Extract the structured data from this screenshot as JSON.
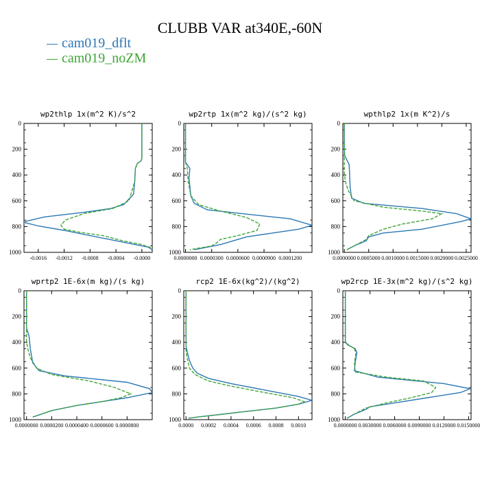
{
  "page": {
    "title": "CLUBB VAR at340E,-60N"
  },
  "legend": [
    {
      "name": "cam019_dflt",
      "color": "#2a77b4"
    },
    {
      "name": "cam019_noZM",
      "color": "#3fa535"
    }
  ],
  "chart_data": [
    {
      "type": "line",
      "title": "wp2thlp  1x(m^2 K)/s^2",
      "ylim": [
        1000,
        0
      ],
      "yticks": [
        "0",
        "200",
        "400",
        "600",
        "800",
        "1000"
      ],
      "xlim": [
        -0.00182,
        0.00016
      ],
      "xtick_values": [
        -0.0016,
        -0.0012,
        -0.0008,
        -0.0004,
        0.0
      ],
      "xtick_labels": [
        "-0.0016",
        "-0.0012",
        "-0.0008",
        "-0.0004",
        "-0.0000"
      ],
      "series": [
        {
          "name": "cam019_dflt",
          "x": [
            0,
            0,
            -1e-05,
            -7e-05,
            -0.0001,
            -0.00011,
            -0.00013,
            -0.00028,
            -0.00048,
            -0.0009,
            -0.0015,
            -0.0018,
            -0.0018,
            -0.0016,
            -0.0012,
            -0.0008,
            -0.0004,
            -0.0001,
            0.0001,
            0.00016
          ],
          "y": [
            0,
            270,
            290,
            310,
            350,
            450,
            550,
            630,
            660,
            690,
            725,
            760,
            770,
            795,
            830,
            870,
            910,
            940,
            960,
            980
          ]
        },
        {
          "name": "cam019_noZM",
          "x": [
            0,
            0,
            -1e-05,
            -7e-05,
            -0.0001,
            -0.00011,
            -0.0002,
            -0.00045,
            -0.0009,
            -0.00118,
            -0.00125,
            -0.0012,
            -0.00095,
            -0.0006,
            -0.0003,
            0.0,
            0.00012,
            0.00016
          ],
          "y": [
            0,
            270,
            290,
            310,
            350,
            450,
            600,
            660,
            700,
            750,
            790,
            820,
            845,
            870,
            910,
            940,
            960,
            970
          ]
        }
      ]
    },
    {
      "type": "line",
      "title": "wp2rtp  1x(m^2 kg)/(s^2 kg)",
      "ylim": [
        1000,
        0
      ],
      "yticks": [
        "0",
        "200",
        "400",
        "600",
        "800",
        "1000"
      ],
      "xlim": [
        -2e-06,
        0.000145
      ],
      "xtick_values": [
        0.0,
        3e-05,
        6e-05,
        9e-05,
        0.00012
      ],
      "xtick_labels": [
        "0.0000000",
        "0.0000300",
        "0.0000600",
        "0.0000900",
        "0.0001200"
      ],
      "series": [
        {
          "name": "cam019_dflt",
          "x": [
            0,
            0,
            2e-06,
            5e-06,
            4e-06,
            6e-06,
            1e-05,
            2.5e-05,
            6.5e-05,
            0.00012,
            0.000145,
            0.00013,
            0.0001,
            7e-05,
            5.5e-05,
            4e-05,
            1e-05
          ],
          "y": [
            0,
            300,
            320,
            350,
            420,
            560,
            620,
            670,
            700,
            740,
            790,
            820,
            850,
            880,
            910,
            940,
            980
          ]
        },
        {
          "name": "cam019_noZM",
          "x": [
            0,
            0,
            2e-06,
            3e-06,
            6e-06,
            1.5e-05,
            4e-05,
            7e-05,
            8.5e-05,
            8.2e-05,
            6e-05,
            4e-05,
            3.5e-05,
            3e-05,
            5e-06
          ],
          "y": [
            0,
            300,
            350,
            450,
            560,
            630,
            680,
            730,
            780,
            830,
            870,
            900,
            930,
            950,
            980
          ]
        }
      ]
    },
    {
      "type": "line",
      "title": "wpthlp2  1x(m K^2)/s",
      "ylim": [
        1000,
        0
      ],
      "yticks": [
        "0",
        "200",
        "400",
        "600",
        "800",
        "1000"
      ],
      "xlim": [
        -3e-05,
        0.0026
      ],
      "xtick_values": [
        0.0,
        0.0005,
        0.001,
        0.0015,
        0.002,
        0.0025
      ],
      "xtick_labels": [
        "0.0000000",
        "0.0005000",
        "0.0010000",
        "0.0015000",
        "0.0020000",
        "0.0025000"
      ],
      "series": [
        {
          "name": "cam019_dflt",
          "x": [
            0,
            0,
            1e-05,
            0.0001,
            0.00012,
            0.00015,
            0.0004,
            0.0016,
            0.0023,
            0.0026,
            0.0024,
            0.0016,
            0.0008,
            0.0005,
            0.00045,
            0.0002,
            5e-05
          ],
          "y": [
            0,
            200,
            250,
            320,
            500,
            580,
            620,
            660,
            700,
            740,
            760,
            820,
            850,
            880,
            910,
            950,
            980
          ]
        },
        {
          "name": "cam019_noZM",
          "x": [
            0,
            0,
            2e-05,
            8e-05,
            0.0002,
            0.0008,
            0.0016,
            0.002,
            0.0018,
            0.0012,
            0.0008,
            0.0005,
            0.00045,
            0.0002,
            5e-05
          ],
          "y": [
            0,
            380,
            450,
            520,
            600,
            650,
            680,
            700,
            740,
            780,
            820,
            870,
            900,
            950,
            980
          ]
        }
      ]
    },
    {
      "type": "line",
      "title": "wprtp2  1E-6x(m kg)/(s kg)",
      "ylim": [
        1000,
        0
      ],
      "yticks": [
        "0",
        "200",
        "400",
        "600",
        "800",
        "1000"
      ],
      "xlim": [
        -2e-06,
        0.0001
      ],
      "xtick_values": [
        0.0,
        2e-05,
        4e-05,
        6e-05,
        8e-05
      ],
      "xtick_labels": [
        "0.0000000",
        "0.0000200",
        "0.0000400",
        "0.0000600",
        "0.0000800"
      ],
      "series": [
        {
          "name": "cam019_dflt",
          "x": [
            0,
            0,
            1e-06,
            2e-06,
            3e-06,
            5e-06,
            1e-05,
            3e-05,
            8e-05,
            9.8e-05,
            0.0001,
            9.5e-05,
            8e-05,
            6e-05,
            4e-05,
            2e-05,
            5e-06
          ],
          "y": [
            0,
            290,
            320,
            350,
            450,
            560,
            620,
            660,
            710,
            760,
            790,
            800,
            830,
            860,
            890,
            930,
            980
          ]
        },
        {
          "name": "cam019_noZM",
          "x": [
            0,
            0,
            1e-06,
            3e-06,
            8e-06,
            2e-05,
            5e-05,
            7e-05,
            8.3e-05,
            7.5e-05,
            6e-05,
            4e-05,
            2e-05,
            5e-06
          ],
          "y": [
            0,
            400,
            450,
            520,
            600,
            650,
            700,
            750,
            800,
            830,
            860,
            890,
            930,
            980
          ]
        }
      ]
    },
    {
      "type": "line",
      "title": "rcp2  1E-6x(kg^2)/(kg^2)",
      "ylim": [
        1000,
        0
      ],
      "yticks": [
        "0",
        "200",
        "400",
        "600",
        "800",
        "1000"
      ],
      "xlim": [
        -2e-05,
        0.00112
      ],
      "xtick_values": [
        0.0,
        0.0002,
        0.0004,
        0.0006,
        0.0008,
        0.001
      ],
      "xtick_labels": [
        "0.0000",
        "0.0002",
        "0.0004",
        "0.0006",
        "0.0008",
        "0.0010"
      ],
      "series": [
        {
          "name": "cam019_dflt",
          "x": [
            0,
            0,
            1e-05,
            3e-05,
            6e-05,
            0.0001,
            0.0002,
            0.0004,
            0.0007,
            0.001,
            0.00112,
            0.001,
            0.0008,
            0.0005,
            0.0003,
            0.0001,
            2e-05
          ],
          "y": [
            0,
            430,
            470,
            540,
            600,
            640,
            680,
            720,
            770,
            820,
            850,
            880,
            910,
            940,
            960,
            980,
            990
          ]
        },
        {
          "name": "cam019_noZM",
          "x": [
            0,
            0,
            1e-05,
            3e-05,
            8e-05,
            0.0002,
            0.0004,
            0.0007,
            0.00095,
            0.00105,
            0.001,
            0.0008,
            0.0005,
            0.0003,
            0.0001,
            2e-05
          ],
          "y": [
            0,
            460,
            520,
            600,
            650,
            700,
            740,
            790,
            830,
            860,
            880,
            910,
            940,
            960,
            980,
            990
          ]
        }
      ]
    },
    {
      "type": "line",
      "title": "wp2rcp  1E-3x(m^2 kg)/(s^2 kg)",
      "ylim": [
        1000,
        0
      ],
      "yticks": [
        "0",
        "200",
        "400",
        "600",
        "800",
        "1000"
      ],
      "xlim": [
        -0.0003,
        0.0153
      ],
      "xtick_values": [
        0.0,
        0.003,
        0.006,
        0.009,
        0.012,
        0.015
      ],
      "xtick_labels": [
        "0.0000000",
        "0.0030000",
        "0.0060000",
        "0.0090000",
        "0.0120000",
        "0.0150000"
      ],
      "series": [
        {
          "name": "cam019_dflt",
          "x": [
            0,
            0,
            0.0003,
            0.0012,
            0.0014,
            0.0012,
            0.0011,
            0.004,
            0.012,
            0.0152,
            0.014,
            0.01,
            0.006,
            0.003,
            0.0025,
            0.001,
            0.0002
          ],
          "y": [
            0,
            400,
            420,
            450,
            480,
            560,
            620,
            670,
            720,
            760,
            790,
            830,
            870,
            900,
            920,
            960,
            990
          ]
        },
        {
          "name": "cam019_noZM",
          "x": [
            0,
            0,
            0.0004,
            0.0011,
            0.0013,
            0.0011,
            0.0012,
            0.005,
            0.0095,
            0.011,
            0.0105,
            0.008,
            0.005,
            0.0025,
            0.001,
            0.0002
          ],
          "y": [
            0,
            400,
            420,
            450,
            480,
            560,
            630,
            670,
            700,
            750,
            790,
            830,
            870,
            910,
            960,
            990
          ]
        }
      ]
    }
  ]
}
